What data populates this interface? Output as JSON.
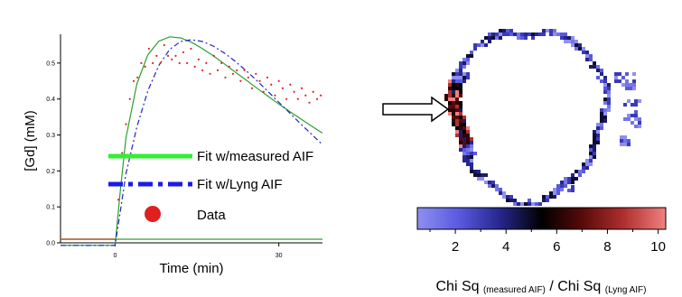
{
  "chart_data": [
    {
      "type": "line",
      "xlabel": "Time (min)",
      "ylabel": "[Gd] (mM)",
      "x_ticks": [
        "0",
        "30"
      ],
      "y_ticks": [
        "0.0",
        "0.1",
        "0.2",
        "0.3",
        "0.4",
        "0.5"
      ],
      "xlim": [
        -10,
        38
      ],
      "ylim": [
        0,
        0.58
      ],
      "legend_position": "center-right",
      "series": [
        {
          "name": "Fit w/measured AIF",
          "color": "#2ca02c",
          "legend_color": "#33ee33",
          "style": "solid",
          "x": [
            -10,
            0,
            1,
            2,
            4,
            6,
            8,
            10,
            12,
            14,
            16,
            18,
            20,
            22,
            24,
            26,
            28,
            30,
            32,
            34,
            36,
            38
          ],
          "y": [
            0,
            0,
            0.16,
            0.3,
            0.45,
            0.53,
            0.568,
            0.58,
            0.577,
            0.565,
            0.547,
            0.527,
            0.505,
            0.482,
            0.46,
            0.437,
            0.415,
            0.393,
            0.372,
            0.352,
            0.332,
            0.312
          ]
        },
        {
          "name": "Fit w/Lyng AIF",
          "color": "#2222cc",
          "legend_color": "#1a1aee",
          "style": "dashdot",
          "x": [
            -10,
            0,
            1,
            2,
            4,
            6,
            8,
            10,
            12,
            14,
            16,
            18,
            20,
            22,
            24,
            26,
            28,
            30,
            32,
            34,
            36,
            38
          ],
          "y": [
            0,
            0,
            0.1,
            0.2,
            0.33,
            0.43,
            0.5,
            0.545,
            0.567,
            0.572,
            0.567,
            0.554,
            0.535,
            0.512,
            0.486,
            0.458,
            0.428,
            0.398,
            0.368,
            0.338,
            0.309,
            0.28
          ]
        },
        {
          "name": "Data",
          "color": "#e02020",
          "style": "points",
          "x": [
            0.6,
            1.3,
            2,
            2.7,
            3.4,
            4.1,
            4.8,
            5.5,
            6.2,
            6.9,
            7.6,
            8.3,
            9,
            9.7,
            10.4,
            11.1,
            11.8,
            12.5,
            13.2,
            13.9,
            14.6,
            15.3,
            16,
            16.7,
            17.4,
            18.1,
            18.8,
            19.5,
            20.2,
            20.9,
            21.6,
            22.3,
            23,
            23.7,
            24.4,
            25.1,
            25.8,
            26.5,
            27.2,
            27.9,
            28.6,
            29.3,
            30,
            30.7,
            31.4,
            32.1,
            32.8,
            33.5,
            34.2,
            34.9,
            35.6,
            36.3,
            37,
            37.7
          ],
          "y": [
            0.12,
            0.25,
            0.33,
            0.4,
            0.45,
            0.46,
            0.5,
            0.49,
            0.54,
            0.5,
            0.52,
            0.5,
            0.55,
            0.52,
            0.51,
            0.52,
            0.5,
            0.53,
            0.5,
            0.54,
            0.49,
            0.51,
            0.48,
            0.5,
            0.47,
            0.52,
            0.48,
            0.5,
            0.46,
            0.49,
            0.47,
            0.48,
            0.45,
            0.48,
            0.46,
            0.43,
            0.47,
            0.45,
            0.42,
            0.46,
            0.44,
            0.41,
            0.45,
            0.43,
            0.4,
            0.44,
            0.42,
            0.4,
            0.43,
            0.41,
            0.39,
            0.42,
            0.4,
            0.41
          ]
        }
      ]
    },
    {
      "type": "heatmap",
      "colorbar_ticks": [
        "2",
        "4",
        "6",
        "8",
        "10"
      ],
      "colorbar_range": [
        0.5,
        10.3
      ],
      "colormap": [
        "#8f8ff0",
        "#5a5ae0",
        "#26268c",
        "#000000",
        "#5a0a0a",
        "#b03030",
        "#f08080"
      ],
      "colorbar_label": {
        "part1": "Chi Sq",
        "part1_sub": "(measured AIF)",
        "separator": "/",
        "part2": "Chi Sq",
        "part2_sub": "(Lyng AIF)"
      },
      "annotation": "arrow pointing right at dark left edge of ring"
    }
  ]
}
